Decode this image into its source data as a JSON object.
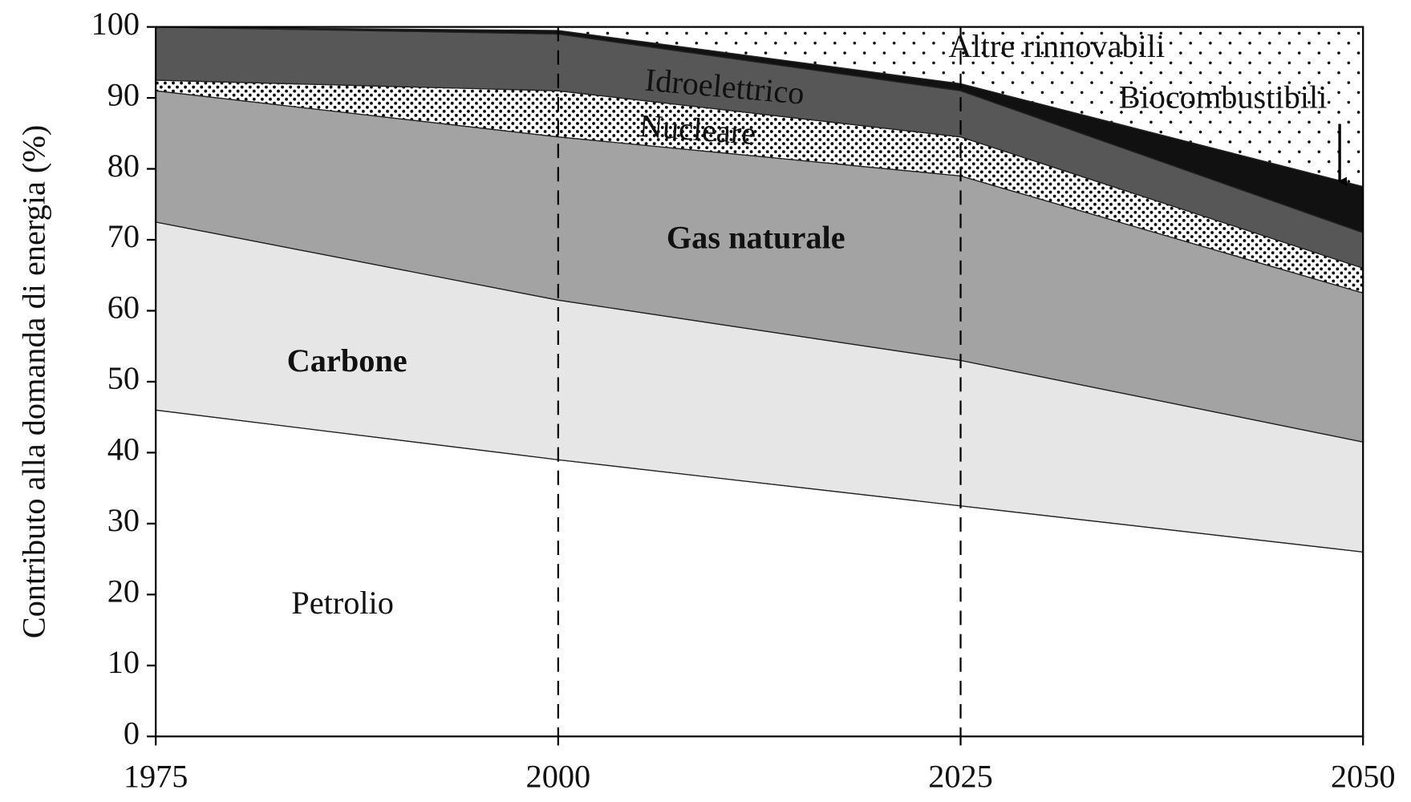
{
  "chart_data": {
    "type": "stacked_area",
    "ylabel": "Contributo alla domanda di energia (%)",
    "x": [
      1975,
      2000,
      2025,
      2050
    ],
    "xlim": [
      1975,
      2050
    ],
    "xticks": [
      1975,
      2000,
      2025,
      2050
    ],
    "ylim": [
      0,
      100
    ],
    "yticks": [
      0,
      10,
      20,
      30,
      40,
      50,
      60,
      70,
      80,
      90,
      100
    ],
    "xgrid": "dashed",
    "series": [
      {
        "name": "Petrolio",
        "color": "#ffffff",
        "values": [
          46,
          39,
          32.5,
          26
        ]
      },
      {
        "name": "Carbone",
        "color": "#e6e6e6",
        "values": [
          26.5,
          22.5,
          20.5,
          15.5
        ]
      },
      {
        "name": "Gas naturale",
        "color": "#a3a3a3",
        "values": [
          18.5,
          23,
          26,
          21
        ]
      },
      {
        "name": "Nucleare",
        "color": "#ffffff",
        "pattern": "dense-dots",
        "values": [
          1.5,
          6.5,
          5.5,
          3.5
        ]
      },
      {
        "name": "Idroelettrico",
        "color": "#575757",
        "values": [
          7.5,
          8,
          6.5,
          5
        ]
      },
      {
        "name": "Biocombustibili",
        "color": "#111111",
        "values": [
          0,
          0.5,
          1,
          6.5
        ]
      },
      {
        "name": "Altre rinnovabili",
        "color": "#ffffff",
        "pattern": "sparse-dots",
        "values": [
          0,
          0.5,
          8,
          22.5
        ]
      }
    ]
  }
}
